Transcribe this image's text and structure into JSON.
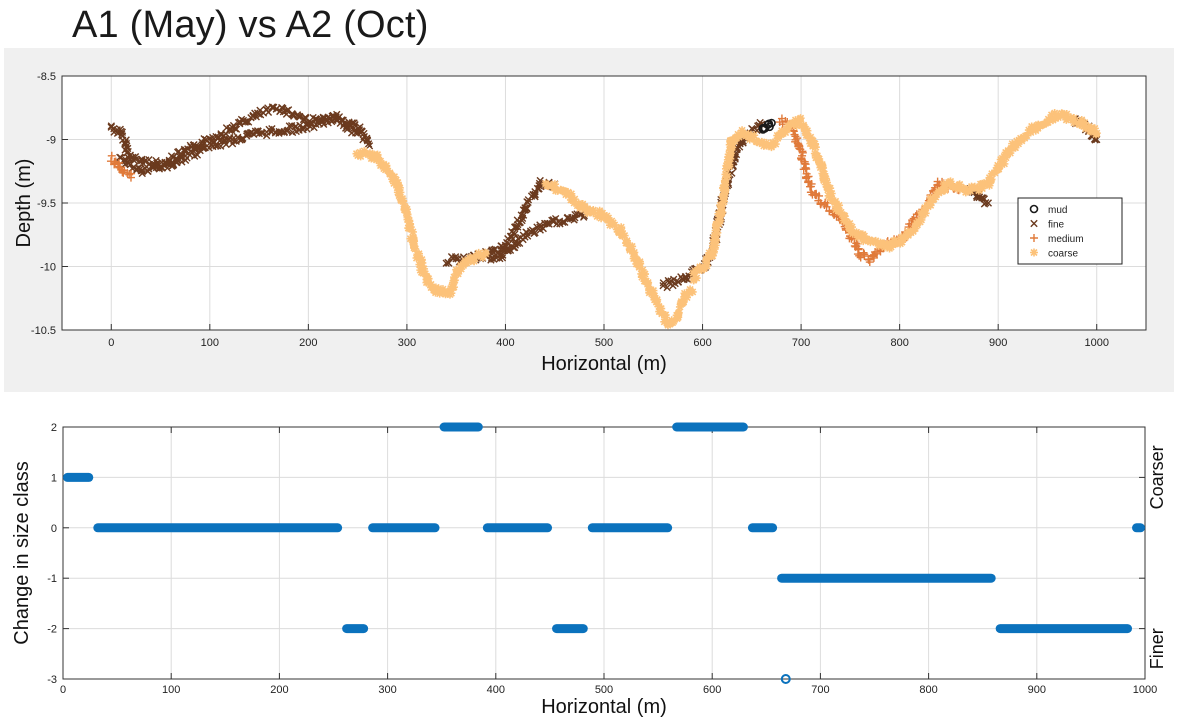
{
  "title": "A1 (May) vs A2 (Oct)",
  "colors": {
    "mud": "#1a1a1a",
    "fine": "#6b3a1e",
    "medium": "#e07a3a",
    "coarse": "#fcc27a",
    "change": "#0b72bd"
  },
  "chart_data": [
    {
      "type": "scatter",
      "xlabel": "Horizontal (m)",
      "ylabel": "Depth (m)",
      "xlim": [
        -50,
        1050
      ],
      "ylim": [
        -10.5,
        -8.5
      ],
      "xticks": [
        "0",
        "100",
        "200",
        "300",
        "400",
        "500",
        "600",
        "700",
        "800",
        "900",
        "1000"
      ],
      "yticks": [
        "-8.5",
        "-9",
        "-9.5",
        "-10",
        "-10.5"
      ],
      "grid": true,
      "legend_position": "right",
      "legend": [
        "mud",
        "fine",
        "medium",
        "coarse"
      ],
      "series": [
        {
          "name": "mud",
          "marker": "circle",
          "segments": [
            [
              [
                660,
                -8.9
              ],
              [
                665,
                -8.88
              ],
              [
                670,
                -8.87
              ]
            ]
          ]
        },
        {
          "name": "fine",
          "marker": "x",
          "segments": [
            [
              [
                0,
                -8.9
              ],
              [
                10,
                -8.95
              ],
              [
                20,
                -9.15
              ],
              [
                50,
                -9.2
              ],
              [
                100,
                -9.0
              ],
              [
                150,
                -8.8
              ],
              [
                170,
                -8.75
              ],
              [
                200,
                -8.85
              ],
              [
                230,
                -8.85
              ],
              [
                250,
                -8.95
              ]
            ],
            [
              [
                10,
                -9.15
              ],
              [
                30,
                -9.25
              ],
              [
                60,
                -9.2
              ],
              [
                100,
                -9.05
              ],
              [
                150,
                -8.95
              ],
              [
                200,
                -8.9
              ],
              [
                230,
                -8.82
              ],
              [
                250,
                -8.9
              ],
              [
                262,
                -9.05
              ]
            ],
            [
              [
                340,
                -9.95
              ],
              [
                360,
                -9.95
              ],
              [
                380,
                -9.9
              ],
              [
                400,
                -9.85
              ],
              [
                420,
                -9.55
              ],
              [
                435,
                -9.35
              ],
              [
                450,
                -9.35
              ]
            ],
            [
              [
                385,
                -9.95
              ],
              [
                400,
                -9.9
              ],
              [
                420,
                -9.75
              ],
              [
                450,
                -9.65
              ],
              [
                480,
                -9.6
              ]
            ],
            [
              [
                560,
                -10.15
              ],
              [
                580,
                -10.1
              ],
              [
                600,
                -10.0
              ],
              [
                610,
                -9.9
              ],
              [
                620,
                -9.5
              ],
              [
                630,
                -9.2
              ],
              [
                640,
                -9.0
              ],
              [
                660,
                -8.88
              ]
            ],
            [
              [
                870,
                -9.4
              ],
              [
                890,
                -9.5
              ]
            ],
            [
              [
                975,
                -8.85
              ],
              [
                990,
                -8.9
              ],
              [
                1000,
                -9.0
              ]
            ]
          ]
        },
        {
          "name": "medium",
          "marker": "plus",
          "segments": [
            [
              [
                0,
                -9.15
              ],
              [
                10,
                -9.25
              ],
              [
                20,
                -9.3
              ]
            ],
            [
              [
                680,
                -8.85
              ],
              [
                690,
                -8.9
              ],
              [
                700,
                -9.1
              ],
              [
                710,
                -9.4
              ],
              [
                720,
                -9.5
              ],
              [
                740,
                -9.6
              ],
              [
                760,
                -9.9
              ],
              [
                770,
                -9.95
              ],
              [
                780,
                -9.85
              ],
              [
                800,
                -9.8
              ],
              [
                820,
                -9.6
              ],
              [
                840,
                -9.35
              ],
              [
                860,
                -9.4
              ]
            ]
          ]
        },
        {
          "name": "coarse",
          "marker": "asterisk",
          "segments": [
            [
              [
                250,
                -9.1
              ],
              [
                270,
                -9.15
              ],
              [
                290,
                -9.35
              ],
              [
                300,
                -9.6
              ],
              [
                310,
                -9.9
              ],
              [
                320,
                -10.1
              ],
              [
                330,
                -10.2
              ],
              [
                345,
                -10.2
              ],
              [
                350,
                -10.05
              ],
              [
                360,
                -9.95
              ],
              [
                380,
                -9.9
              ]
            ],
            [
              [
                440,
                -9.35
              ],
              [
                460,
                -9.4
              ],
              [
                480,
                -9.55
              ],
              [
                500,
                -9.6
              ],
              [
                515,
                -9.7
              ],
              [
                530,
                -9.9
              ],
              [
                545,
                -10.15
              ],
              [
                555,
                -10.3
              ],
              [
                565,
                -10.45
              ],
              [
                575,
                -10.4
              ],
              [
                580,
                -10.25
              ],
              [
                590,
                -10.2
              ]
            ],
            [
              [
                590,
                -10.1
              ],
              [
                610,
                -9.9
              ],
              [
                620,
                -9.5
              ],
              [
                630,
                -9.0
              ],
              [
                640,
                -8.95
              ],
              [
                655,
                -9.0
              ],
              [
                670,
                -9.05
              ],
              [
                680,
                -8.95
              ],
              [
                690,
                -8.88
              ],
              [
                700,
                -8.85
              ],
              [
                710,
                -9.0
              ],
              [
                720,
                -9.2
              ],
              [
                730,
                -9.45
              ],
              [
                750,
                -9.7
              ],
              [
                770,
                -9.8
              ],
              [
                790,
                -9.85
              ],
              [
                810,
                -9.75
              ],
              [
                830,
                -9.5
              ],
              [
                850,
                -9.35
              ],
              [
                870,
                -9.4
              ],
              [
                890,
                -9.35
              ],
              [
                910,
                -9.1
              ],
              [
                930,
                -8.95
              ],
              [
                960,
                -8.8
              ],
              [
                980,
                -8.85
              ],
              [
                1000,
                -8.95
              ]
            ]
          ]
        }
      ]
    },
    {
      "type": "scatter",
      "xlabel": "Horizontal (m)",
      "ylabel": "Change in size class",
      "xlim": [
        0,
        1000
      ],
      "ylim": [
        -3,
        2
      ],
      "xticks": [
        "0",
        "100",
        "200",
        "300",
        "400",
        "500",
        "600",
        "700",
        "800",
        "900",
        "1000"
      ],
      "yticks": [
        "2",
        "1",
        "0",
        "-1",
        "-2",
        "-3"
      ],
      "grid": true,
      "right_labels": [
        "Coarser",
        "Finer"
      ],
      "segments": [
        {
          "x0": 0,
          "x1": 28,
          "y": 1
        },
        {
          "x0": 28,
          "x1": 258,
          "y": 0
        },
        {
          "x0": 258,
          "x1": 282,
          "y": -2
        },
        {
          "x0": 282,
          "x1": 348,
          "y": 0
        },
        {
          "x0": 348,
          "x1": 388,
          "y": 2
        },
        {
          "x0": 388,
          "x1": 452,
          "y": 0
        },
        {
          "x0": 452,
          "x1": 485,
          "y": -2
        },
        {
          "x0": 485,
          "x1": 563,
          "y": 0
        },
        {
          "x0": 563,
          "x1": 633,
          "y": 2
        },
        {
          "x0": 633,
          "x1": 660,
          "y": 0
        },
        {
          "x0": 660,
          "x1": 862,
          "y": -1
        },
        {
          "x0": 862,
          "x1": 988,
          "y": -2
        },
        {
          "x0": 988,
          "x1": 1000,
          "y": 0
        }
      ],
      "points": [
        {
          "x": 668,
          "y": -3
        }
      ]
    }
  ]
}
